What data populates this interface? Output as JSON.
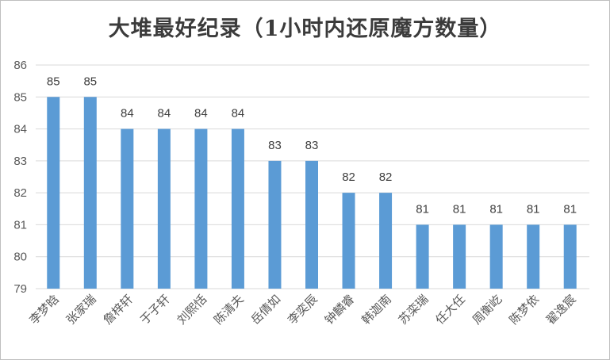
{
  "chart_data": {
    "type": "bar",
    "title": "大堆最好纪录（1小时内还原魔方数量）",
    "categories": [
      "李梦晗",
      "张家瑞",
      "詹梓轩",
      "于子轩",
      "刘熙恬",
      "陈清夫",
      "岳倩如",
      "李奕辰",
      "钟麟睿",
      "韩迦南",
      "苏栾瑞",
      "任大任",
      "周衡屹",
      "陈梦依",
      "翟逸宸"
    ],
    "values": [
      85,
      85,
      84,
      84,
      84,
      84,
      83,
      83,
      82,
      82,
      81,
      81,
      81,
      81,
      81
    ],
    "ylim": [
      79,
      86
    ],
    "yticks": [
      79,
      80,
      81,
      82,
      83,
      84,
      85,
      86
    ],
    "grid": true,
    "bar_color": "#5b9bd5",
    "grid_color": "#d9d9d9"
  }
}
